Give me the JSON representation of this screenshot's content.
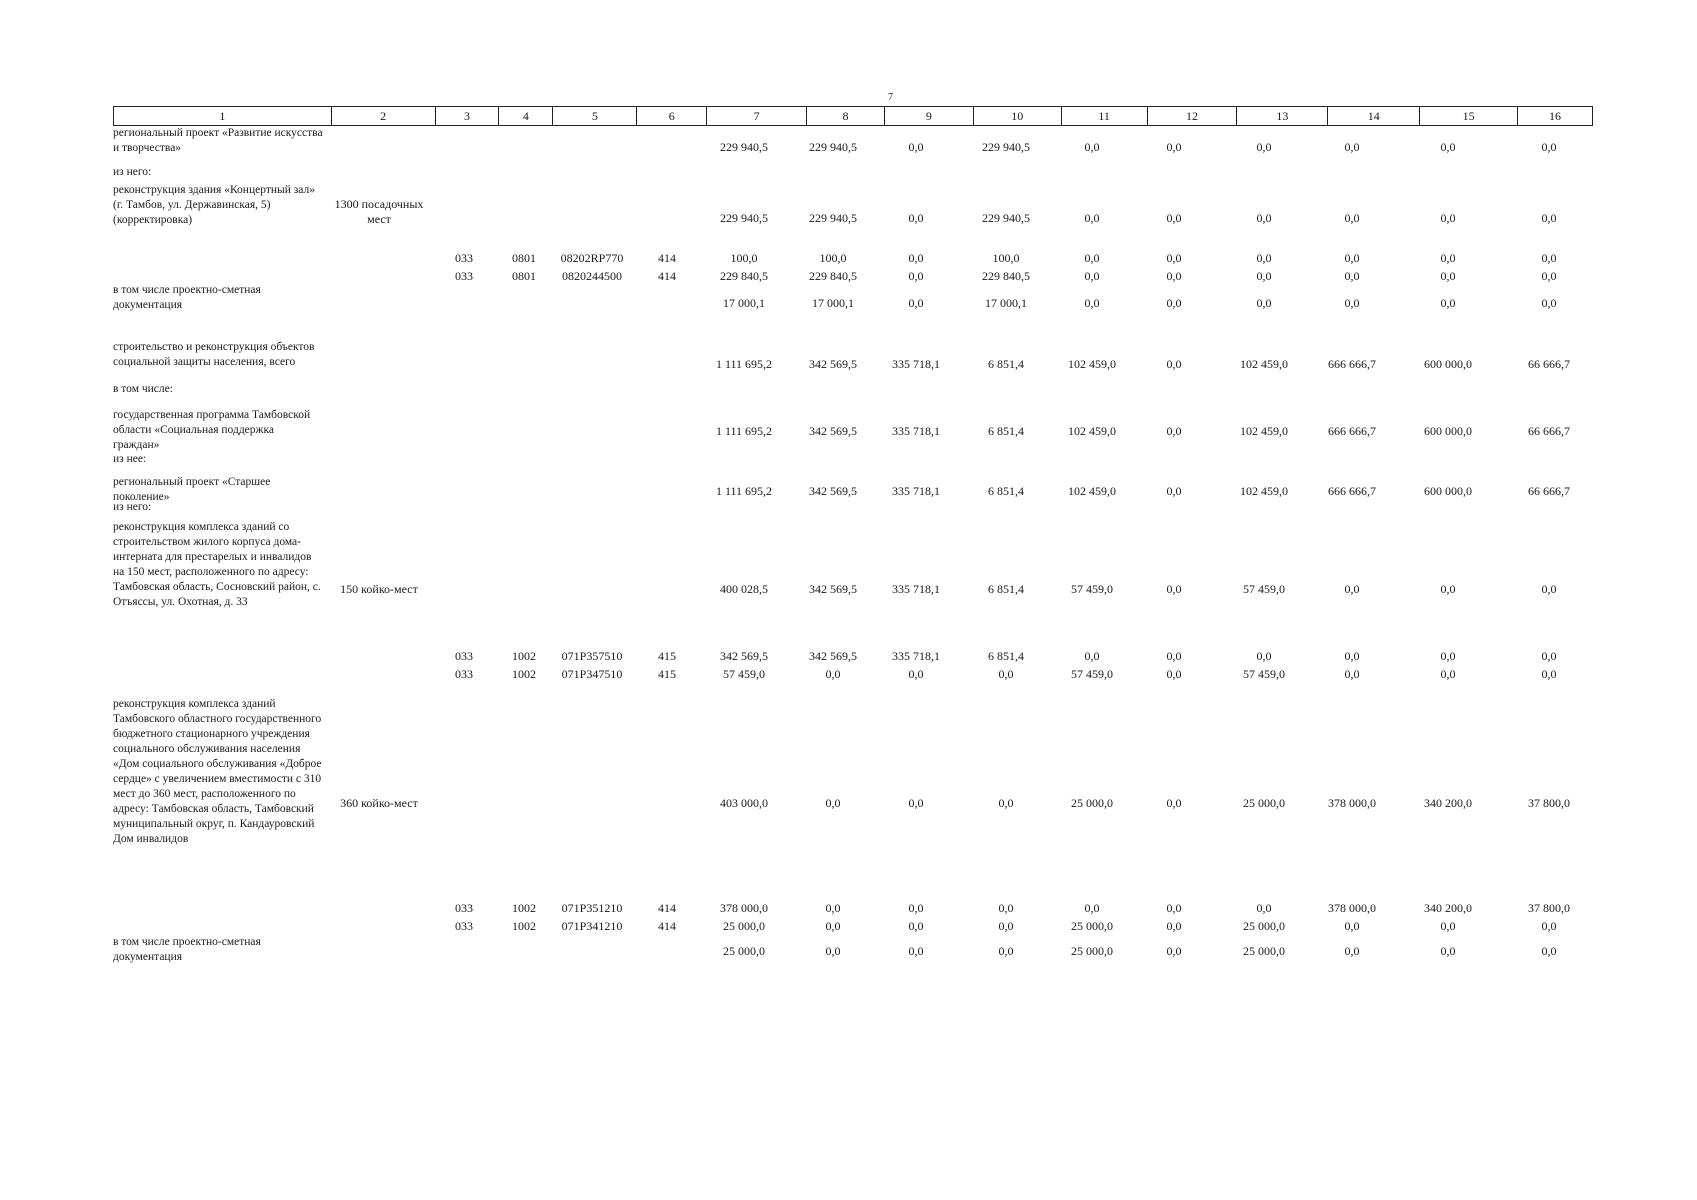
{
  "page_number": "7",
  "header": [
    "1",
    "2",
    "3",
    "4",
    "5",
    "6",
    "7",
    "8",
    "9",
    "10",
    "11",
    "12",
    "13",
    "14",
    "15",
    "16"
  ],
  "rows": [
    {
      "desc": "региональный проект «Развитие искусства и творчества»",
      "cap": "",
      "c3": "",
      "c4": "",
      "c5": "",
      "c6": "",
      "v": [
        "229 940,5",
        "229 940,5",
        "0,0",
        "229 940,5",
        "0,0",
        "0,0",
        "0,0",
        "0,0",
        "0,0",
        "0,0"
      ]
    },
    {
      "desc": "из него:",
      "cap": "",
      "c3": "",
      "c4": "",
      "c5": "",
      "c6": "",
      "v": [
        "",
        "",
        "",
        "",
        "",
        "",
        "",
        "",
        "",
        ""
      ]
    },
    {
      "desc": "реконструкция здания «Концертный зал» (г. Тамбов, ул. Державинская, 5) (корректировка)",
      "cap": "1300 посадочных мест",
      "c3": "",
      "c4": "",
      "c5": "",
      "c6": "",
      "v": [
        "229 940,5",
        "229 940,5",
        "0,0",
        "229 940,5",
        "0,0",
        "0,0",
        "0,0",
        "0,0",
        "0,0",
        "0,0"
      ]
    },
    {
      "desc": "",
      "cap": "",
      "c3": "033",
      "c4": "0801",
      "c5": "08202RP770",
      "c6": "414",
      "v": [
        "100,0",
        "100,0",
        "0,0",
        "100,0",
        "0,0",
        "0,0",
        "0,0",
        "0,0",
        "0,0",
        "0,0"
      ]
    },
    {
      "desc": "",
      "cap": "",
      "c3": "033",
      "c4": "0801",
      "c5": "0820244500",
      "c6": "414",
      "v": [
        "229 840,5",
        "229 840,5",
        "0,0",
        "229 840,5",
        "0,0",
        "0,0",
        "0,0",
        "0,0",
        "0,0",
        "0,0"
      ]
    },
    {
      "desc": "в том числе проектно-сметная документация",
      "cap": "",
      "c3": "",
      "c4": "",
      "c5": "",
      "c6": "",
      "v": [
        "17 000,1",
        "17 000,1",
        "0,0",
        "17 000,1",
        "0,0",
        "0,0",
        "0,0",
        "0,0",
        "0,0",
        "0,0"
      ]
    },
    {
      "desc": "строительство и реконструкция объектов социальной защиты населения, всего",
      "cap": "",
      "c3": "",
      "c4": "",
      "c5": "",
      "c6": "",
      "v": [
        "1 111 695,2",
        "342 569,5",
        "335 718,1",
        "6 851,4",
        "102 459,0",
        "0,0",
        "102 459,0",
        "666 666,7",
        "600 000,0",
        "66 666,7"
      ]
    },
    {
      "desc": "в том числе:",
      "cap": "",
      "c3": "",
      "c4": "",
      "c5": "",
      "c6": "",
      "v": [
        "",
        "",
        "",
        "",
        "",
        "",
        "",
        "",
        "",
        ""
      ]
    },
    {
      "desc": "государственная программа Тамбовской области «Социальная поддержка граждан»",
      "cap": "",
      "c3": "",
      "c4": "",
      "c5": "",
      "c6": "",
      "v": [
        "1 111 695,2",
        "342 569,5",
        "335 718,1",
        "6 851,4",
        "102 459,0",
        "0,0",
        "102 459,0",
        "666 666,7",
        "600 000,0",
        "66 666,7"
      ]
    },
    {
      "desc": "из нее:",
      "cap": "",
      "c3": "",
      "c4": "",
      "c5": "",
      "c6": "",
      "v": [
        "",
        "",
        "",
        "",
        "",
        "",
        "",
        "",
        "",
        ""
      ]
    },
    {
      "desc": "региональный проект «Старшее поколение»",
      "cap": "",
      "c3": "",
      "c4": "",
      "c5": "",
      "c6": "",
      "v": [
        "1 111 695,2",
        "342 569,5",
        "335 718,1",
        "6 851,4",
        "102 459,0",
        "0,0",
        "102 459,0",
        "666 666,7",
        "600 000,0",
        "66 666,7"
      ]
    },
    {
      "desc": "из него:",
      "cap": "",
      "c3": "",
      "c4": "",
      "c5": "",
      "c6": "",
      "v": [
        "",
        "",
        "",
        "",
        "",
        "",
        "",
        "",
        "",
        ""
      ]
    },
    {
      "desc": "реконструкция комплекса зданий со строительством жилого корпуса дома-интерната для престарелых и инвалидов на 150 мест, расположенного по адресу: Тамбовская область, Сосновский район, с. Отъяссы, ул. Охотная, д. 33",
      "cap": "150 койко-мест",
      "c3": "",
      "c4": "",
      "c5": "",
      "c6": "",
      "v": [
        "400 028,5",
        "342 569,5",
        "335 718,1",
        "6 851,4",
        "57 459,0",
        "0,0",
        "57 459,0",
        "0,0",
        "0,0",
        "0,0"
      ]
    },
    {
      "desc": "",
      "cap": "",
      "c3": "033",
      "c4": "1002",
      "c5": "071P357510",
      "c6": "415",
      "v": [
        "342 569,5",
        "342 569,5",
        "335 718,1",
        "6 851,4",
        "0,0",
        "0,0",
        "0,0",
        "0,0",
        "0,0",
        "0,0"
      ]
    },
    {
      "desc": "",
      "cap": "",
      "c3": "033",
      "c4": "1002",
      "c5": "071P347510",
      "c6": "415",
      "v": [
        "57 459,0",
        "0,0",
        "0,0",
        "0,0",
        "57 459,0",
        "0,0",
        "57 459,0",
        "0,0",
        "0,0",
        "0,0"
      ]
    },
    {
      "desc": "реконструкция комплекса зданий Тамбовского областного государственного бюджетного стационарного учреждения социального обслуживания населения «Дом социального обслуживания «Доброе сердце» с увеличением вместимости с 310 мест до 360 мест, расположенного по адресу: Тамбовская область, Тамбовский муниципальный округ, п. Кандауровский Дом инвалидов",
      "cap": "360 койко-мест",
      "c3": "",
      "c4": "",
      "c5": "",
      "c6": "",
      "v": [
        "403 000,0",
        "0,0",
        "0,0",
        "0,0",
        "25 000,0",
        "0,0",
        "25 000,0",
        "378 000,0",
        "340 200,0",
        "37 800,0"
      ]
    },
    {
      "desc": "",
      "cap": "",
      "c3": "033",
      "c4": "1002",
      "c5": "071P351210",
      "c6": "414",
      "v": [
        "378 000,0",
        "0,0",
        "0,0",
        "0,0",
        "0,0",
        "0,0",
        "0,0",
        "378 000,0",
        "340 200,0",
        "37 800,0"
      ]
    },
    {
      "desc": "",
      "cap": "",
      "c3": "033",
      "c4": "1002",
      "c5": "071P341210",
      "c6": "414",
      "v": [
        "25 000,0",
        "0,0",
        "0,0",
        "0,0",
        "25 000,0",
        "0,0",
        "25 000,0",
        "0,0",
        "0,0",
        "0,0"
      ]
    },
    {
      "desc": "в том числе проектно-сметная документация",
      "cap": "",
      "c3": "",
      "c4": "",
      "c5": "",
      "c6": "",
      "v": [
        "25 000,0",
        "0,0",
        "0,0",
        "0,0",
        "25 000,0",
        "0,0",
        "25 000,0",
        "0,0",
        "0,0",
        "0,0"
      ]
    }
  ]
}
